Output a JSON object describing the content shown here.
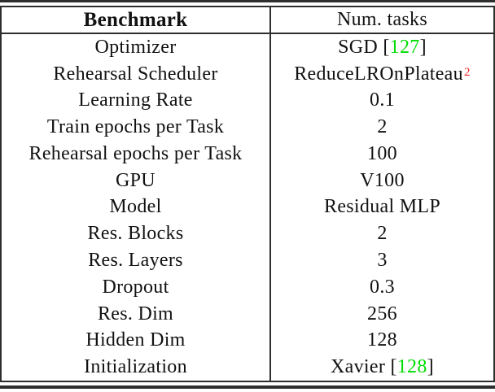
{
  "table": {
    "header": {
      "benchmark": "Benchmark",
      "num_tasks": "Num. tasks"
    },
    "rows": [
      {
        "label": "Optimizer",
        "value": [
          {
            "t": "SGD ["
          },
          {
            "t": "127",
            "s": "cite"
          },
          {
            "t": "]"
          }
        ]
      },
      {
        "label": "Rehearsal Scheduler",
        "value": [
          {
            "t": "ReduceLROnPlateau"
          },
          {
            "t": "2",
            "s": "footnote"
          }
        ]
      },
      {
        "label": "Learning Rate",
        "value": [
          {
            "t": "0.1"
          }
        ]
      },
      {
        "label": "Train epochs per Task",
        "value": [
          {
            "t": "2"
          }
        ]
      },
      {
        "label": "Rehearsal epochs per Task",
        "value": [
          {
            "t": "100"
          }
        ]
      },
      {
        "label": "GPU",
        "value": [
          {
            "t": "V100"
          }
        ]
      },
      {
        "label": "Model",
        "value": [
          {
            "t": "Residual MLP"
          }
        ]
      },
      {
        "label": "Res. Blocks",
        "value": [
          {
            "t": "2"
          }
        ]
      },
      {
        "label": "Res. Layers",
        "value": [
          {
            "t": "3"
          }
        ]
      },
      {
        "label": "Dropout",
        "value": [
          {
            "t": "0.3"
          }
        ]
      },
      {
        "label": "Res. Dim",
        "value": [
          {
            "t": "256"
          }
        ]
      },
      {
        "label": "Hidden Dim",
        "value": [
          {
            "t": "128"
          }
        ]
      },
      {
        "label": "Initialization",
        "value": [
          {
            "t": "Xavier ["
          },
          {
            "t": "128",
            "s": "cite"
          },
          {
            "t": "]"
          }
        ]
      }
    ]
  },
  "colors": {
    "citation_green": "#00dd00",
    "footnote_red": "#ee2222",
    "rule": "#2e2e2e",
    "text": "#111111"
  }
}
